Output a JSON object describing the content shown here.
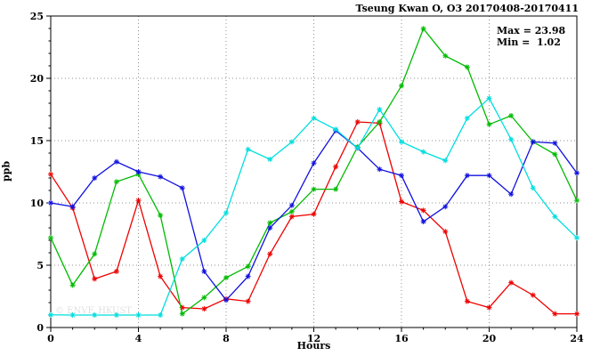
{
  "title": "Tseung Kwan O, O3 20170408-20170411",
  "stats": {
    "max_label": "Max = 23.98",
    "min_label": "Min =  1.02"
  },
  "watermark": "© ENVF, HKUST",
  "chart_data": {
    "type": "line",
    "title": "Tseung Kwan O, O3 20170408-20170411",
    "xlabel": "Hours",
    "ylabel": "ppb",
    "xlim": [
      0,
      24
    ],
    "ylim": [
      0,
      25
    ],
    "xticks": [
      0,
      4,
      8,
      12,
      16,
      20,
      24
    ],
    "yticks": [
      0,
      5,
      10,
      15,
      20,
      25
    ],
    "x_minor_step": 1,
    "y_minor_step": 1,
    "grid": true,
    "legend": "none",
    "marker": "asterisk",
    "max": 23.98,
    "min": 1.02,
    "x": [
      0,
      1,
      2,
      3,
      4,
      5,
      6,
      7,
      8,
      9,
      10,
      11,
      12,
      13,
      14,
      15,
      16,
      17,
      18,
      19,
      20,
      21,
      22,
      23,
      24
    ],
    "series": [
      {
        "name": "red",
        "color": "#ee0000",
        "values": [
          12.3,
          9.6,
          3.9,
          4.5,
          10.2,
          4.1,
          1.6,
          1.5,
          2.3,
          2.1,
          5.9,
          8.9,
          9.1,
          12.9,
          16.5,
          16.4,
          10.1,
          9.4,
          7.7,
          2.1,
          1.6,
          3.6,
          2.6,
          1.1,
          1.1
        ]
      },
      {
        "name": "green",
        "color": "#00bb00",
        "values": [
          7.2,
          3.4,
          5.9,
          11.7,
          12.3,
          9.0,
          1.1,
          2.4,
          4.0,
          4.9,
          8.4,
          9.3,
          11.1,
          11.1,
          14.5,
          16.5,
          19.4,
          23.98,
          21.8,
          20.9,
          16.3,
          17.0,
          14.9,
          13.9,
          10.2
        ]
      },
      {
        "name": "blue",
        "color": "#1010e0",
        "values": [
          10.0,
          9.7,
          12.0,
          13.3,
          12.5,
          12.1,
          11.2,
          4.5,
          2.2,
          4.1,
          8.0,
          9.8,
          13.2,
          15.8,
          14.4,
          12.7,
          12.2,
          8.5,
          9.7,
          12.2,
          12.2,
          10.7,
          14.9,
          14.8,
          12.4
        ]
      },
      {
        "name": "cyan",
        "color": "#00dede",
        "values": [
          1.02,
          1.0,
          1.0,
          1.0,
          1.0,
          1.0,
          5.5,
          7.0,
          9.2,
          14.3,
          13.5,
          14.9,
          16.8,
          15.9,
          14.4,
          17.5,
          14.9,
          14.1,
          13.4,
          16.8,
          18.4,
          15.1,
          11.2,
          8.9,
          7.2
        ]
      }
    ]
  }
}
